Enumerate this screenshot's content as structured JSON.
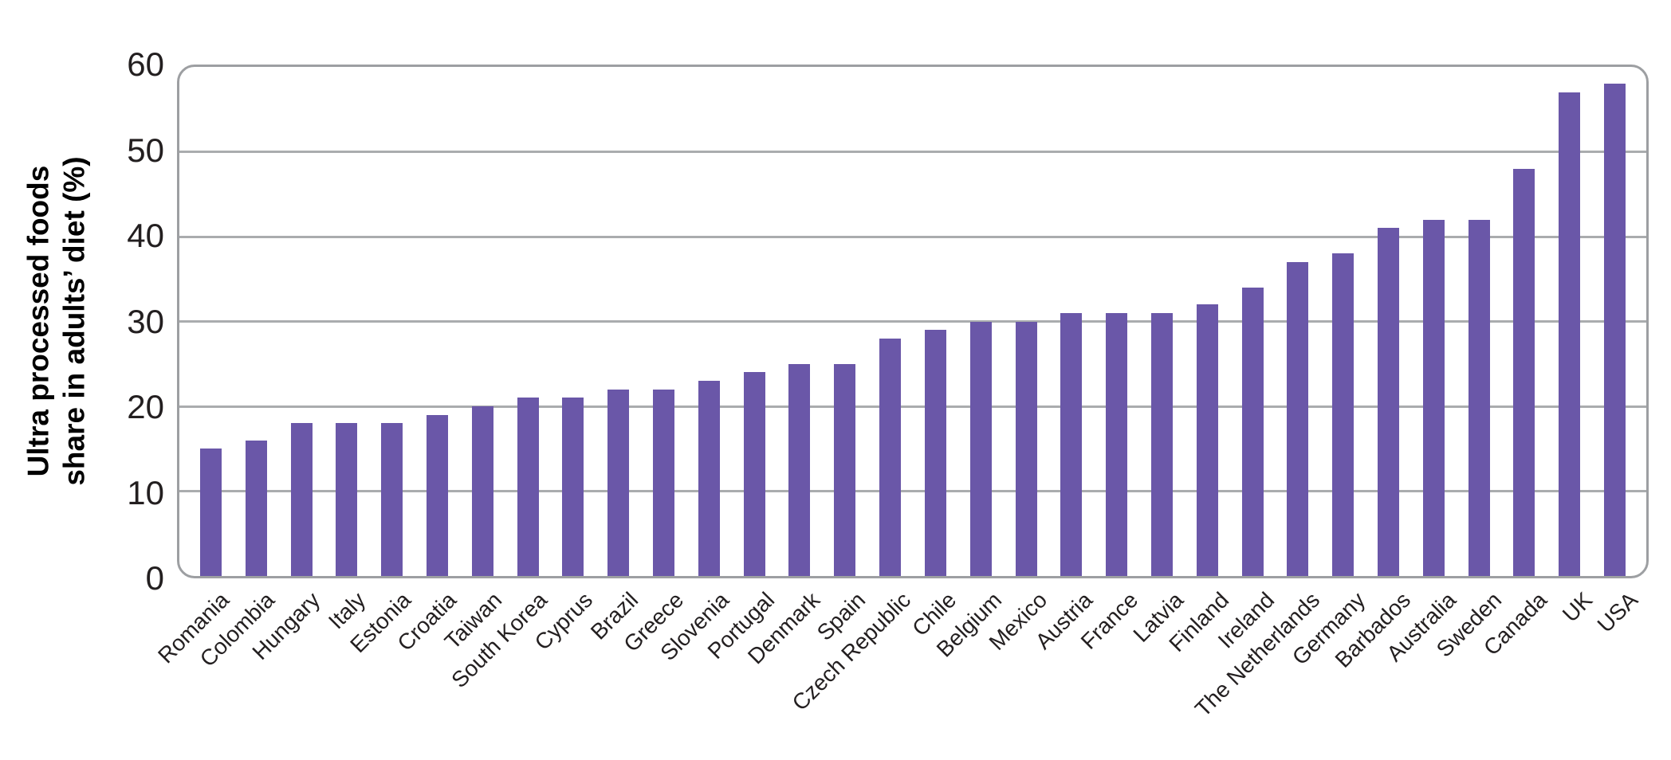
{
  "chart_data": {
    "type": "bar",
    "title": "",
    "ylabel": "Ultra processed foods share in adults’ diet (%)",
    "ylabel_line1": "Ultra processed foods",
    "ylabel_line2": "share in adults’ diet (%)",
    "xlabel": "",
    "categories": [
      "Romania",
      "Colombia",
      "Hungary",
      "Italy",
      "Estonia",
      "Croatia",
      "Taiwan",
      "South Korea",
      "Cyprus",
      "Brazil",
      "Greece",
      "Slovenia",
      "Portugal",
      "Denmark",
      "Spain",
      "Czech Republic",
      "Chile",
      "Belgium",
      "Mexico",
      "Austria",
      "France",
      "Latvia",
      "Finland",
      "Ireland",
      "The Netherlands",
      "Germany",
      "Barbados",
      "Australia",
      "Sweden",
      "Canada",
      "UK",
      "USA"
    ],
    "values": [
      15,
      16,
      18,
      18,
      18,
      19,
      20,
      21,
      21,
      22,
      22,
      23,
      24,
      25,
      25,
      28,
      29,
      30,
      30,
      31,
      31,
      31,
      32,
      34,
      37,
      38,
      41,
      42,
      42,
      48,
      57,
      58
    ],
    "ylim": [
      0,
      60
    ],
    "yticks": [
      0,
      10,
      20,
      30,
      40,
      50,
      60
    ],
    "grid": "horizontal",
    "legend": "none",
    "colors": {
      "bar": "#6a57a8",
      "gridline": "#aaacae",
      "frame": "#9d9fa2",
      "text": "#231f20"
    }
  }
}
